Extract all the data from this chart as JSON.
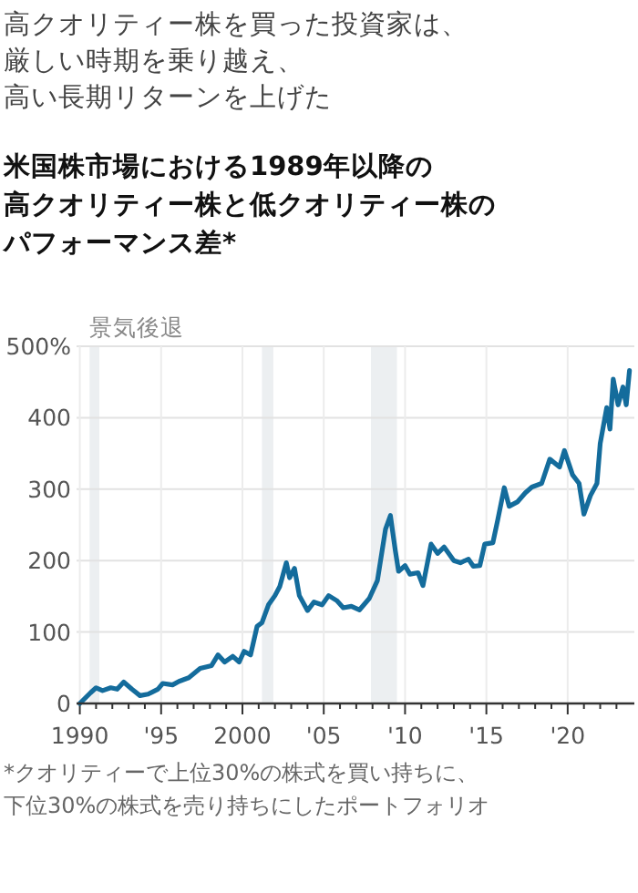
{
  "chart_data": {
    "type": "line",
    "title": "高クオリティー株を買った投資家は、厳しい時期を乗り越え、高い長期リターンを上げた",
    "subtitle": "米国株市場における1989年以降の高クオリティー株と低クオリティー株のパフォーマンス差*",
    "annotations": [
      "*クオリティーで上位30%の株式を買い持ちに、下位30%の株式を売り持ちにしたポートフォリオ"
    ],
    "x": [
      1990.0,
      1990.66,
      1991.0,
      1991.4,
      1991.9,
      1992.3,
      1992.7,
      1993.2,
      1993.7,
      1994.2,
      1994.8,
      1995.1,
      1995.7,
      1996.1,
      1996.7,
      1997.4,
      1998.1,
      1998.5,
      1998.9,
      1999.4,
      1999.8,
      2000.1,
      2000.5,
      2000.9,
      2001.2,
      2001.6,
      2002.0,
      2002.3,
      2002.7,
      2002.9,
      2003.2,
      2003.5,
      2004.0,
      2004.4,
      2004.9,
      2005.3,
      2005.8,
      2006.2,
      2006.7,
      2007.2,
      2007.8,
      2008.3,
      2008.8,
      2009.1,
      2009.4,
      2009.6,
      2010.0,
      2010.3,
      2010.8,
      2011.1,
      2011.6,
      2012.0,
      2012.4,
      2013.0,
      2013.4,
      2013.9,
      2014.2,
      2014.6,
      2014.9,
      2015.4,
      2015.7,
      2016.1,
      2016.4,
      2016.9,
      2017.4,
      2017.8,
      2018.4,
      2018.9,
      2019.5,
      2019.8,
      2020.3,
      2020.7,
      2021.0,
      2021.4,
      2021.8,
      2022.0,
      2022.4,
      2022.6,
      2022.8,
      2023.1,
      2023.4,
      2023.6,
      2023.8
    ],
    "series": [
      {
        "color": "#146c9c",
        "values": [
          0,
          15,
          22,
          18,
          22,
          20,
          30,
          20,
          11,
          13,
          20,
          28,
          26,
          31,
          36,
          49,
          53,
          68,
          58,
          66,
          58,
          73,
          68,
          108,
          113,
          138,
          151,
          164,
          197,
          176,
          189,
          151,
          130,
          142,
          138,
          151,
          144,
          134,
          136,
          131,
          147,
          172,
          244,
          263,
          214,
          185,
          193,
          181,
          183,
          165,
          223,
          210,
          219,
          200,
          197,
          202,
          192,
          193,
          223,
          225,
          257,
          302,
          276,
          282,
          295,
          303,
          308,
          342,
          331,
          354,
          320,
          308,
          265,
          291,
          308,
          364,
          414,
          384,
          454,
          418,
          443,
          418,
          466
        ]
      }
    ],
    "xlim": [
      1989.8,
      2024.1
    ],
    "ylim": [
      0,
      500
    ],
    "xticks": [
      {
        "value": 1990,
        "label": "1990"
      },
      {
        "value": 1991,
        "label": null
      },
      {
        "value": 1992,
        "label": null
      },
      {
        "value": 1993,
        "label": null
      },
      {
        "value": 1994,
        "label": null
      },
      {
        "value": 1995,
        "label": "'95"
      },
      {
        "value": 1996,
        "label": null
      },
      {
        "value": 1997,
        "label": null
      },
      {
        "value": 1998,
        "label": null
      },
      {
        "value": 1999,
        "label": null
      },
      {
        "value": 2000,
        "label": "2000"
      },
      {
        "value": 2001,
        "label": null
      },
      {
        "value": 2002,
        "label": null
      },
      {
        "value": 2003,
        "label": null
      },
      {
        "value": 2004,
        "label": null
      },
      {
        "value": 2005,
        "label": "'05"
      },
      {
        "value": 2006,
        "label": null
      },
      {
        "value": 2007,
        "label": null
      },
      {
        "value": 2008,
        "label": null
      },
      {
        "value": 2009,
        "label": null
      },
      {
        "value": 2010,
        "label": "'10"
      },
      {
        "value": 2011,
        "label": null
      },
      {
        "value": 2012,
        "label": null
      },
      {
        "value": 2013,
        "label": null
      },
      {
        "value": 2014,
        "label": null
      },
      {
        "value": 2015,
        "label": "'15"
      },
      {
        "value": 2016,
        "label": null
      },
      {
        "value": 2017,
        "label": null
      },
      {
        "value": 2018,
        "label": null
      },
      {
        "value": 2019,
        "label": null
      },
      {
        "value": 2020,
        "label": "'20"
      },
      {
        "value": 2021,
        "label": null
      },
      {
        "value": 2022,
        "label": null
      },
      {
        "value": 2023,
        "label": null
      }
    ],
    "yticks": [
      0,
      100,
      200,
      300,
      400,
      {
        "value": 500,
        "label": "500%"
      }
    ],
    "bands": [
      {
        "axis": "x",
        "from": 1990.6,
        "to": 1991.2,
        "label": "景気後退",
        "color": "#eceff1"
      },
      {
        "axis": "x",
        "from": 2001.2,
        "to": 2001.9,
        "color": "#eceff1"
      },
      {
        "axis": "x",
        "from": 2007.9,
        "to": 2009.5,
        "color": "#eceff1"
      }
    ],
    "grid": true,
    "marker": "none",
    "line_style": "solid"
  }
}
